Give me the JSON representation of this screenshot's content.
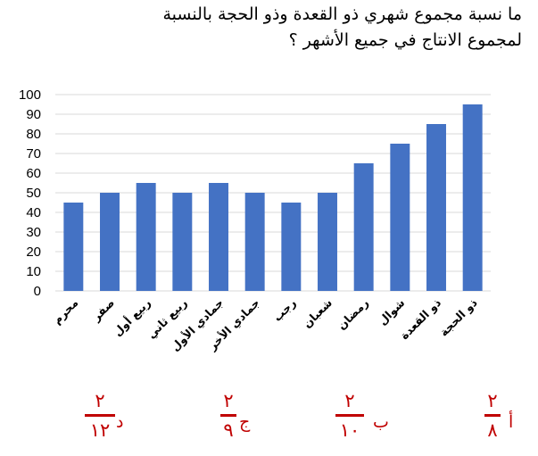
{
  "question": {
    "line1": "ما نسبة مجموع شهري ذو القعدة وذو الحجة بالنسبة",
    "line2": "لمجموع الانتاج في جميع الأشهر ؟"
  },
  "chart_data": {
    "type": "bar",
    "categories": [
      "محرم",
      "صفر",
      "ربيع أول",
      "ربيع ثاني",
      "جمادي الأول",
      "جمادي الأخر",
      "رجب",
      "شعبان",
      "رمضان",
      "شوال",
      "ذو القعدة",
      "ذو الحجة"
    ],
    "values": [
      45,
      50,
      55,
      50,
      55,
      50,
      45,
      50,
      65,
      75,
      85,
      95
    ],
    "yticks": [
      0,
      10,
      20,
      30,
      40,
      50,
      60,
      70,
      80,
      90,
      100
    ],
    "ylim": [
      0,
      100
    ],
    "grid": true,
    "bar_color": "#4472c4"
  },
  "options": [
    {
      "letter": "أ",
      "numerator": "٢",
      "denominator": "٨"
    },
    {
      "letter": "ب",
      "numerator": "٢",
      "denominator": "١٠"
    },
    {
      "letter": "ج",
      "numerator": "٢",
      "denominator": "٩"
    },
    {
      "letter": "د",
      "numerator": "٢",
      "denominator": "١٢"
    }
  ],
  "colors": {
    "accent": "#c00000",
    "bar": "#4472c4",
    "grid": "#d9d9d9"
  }
}
